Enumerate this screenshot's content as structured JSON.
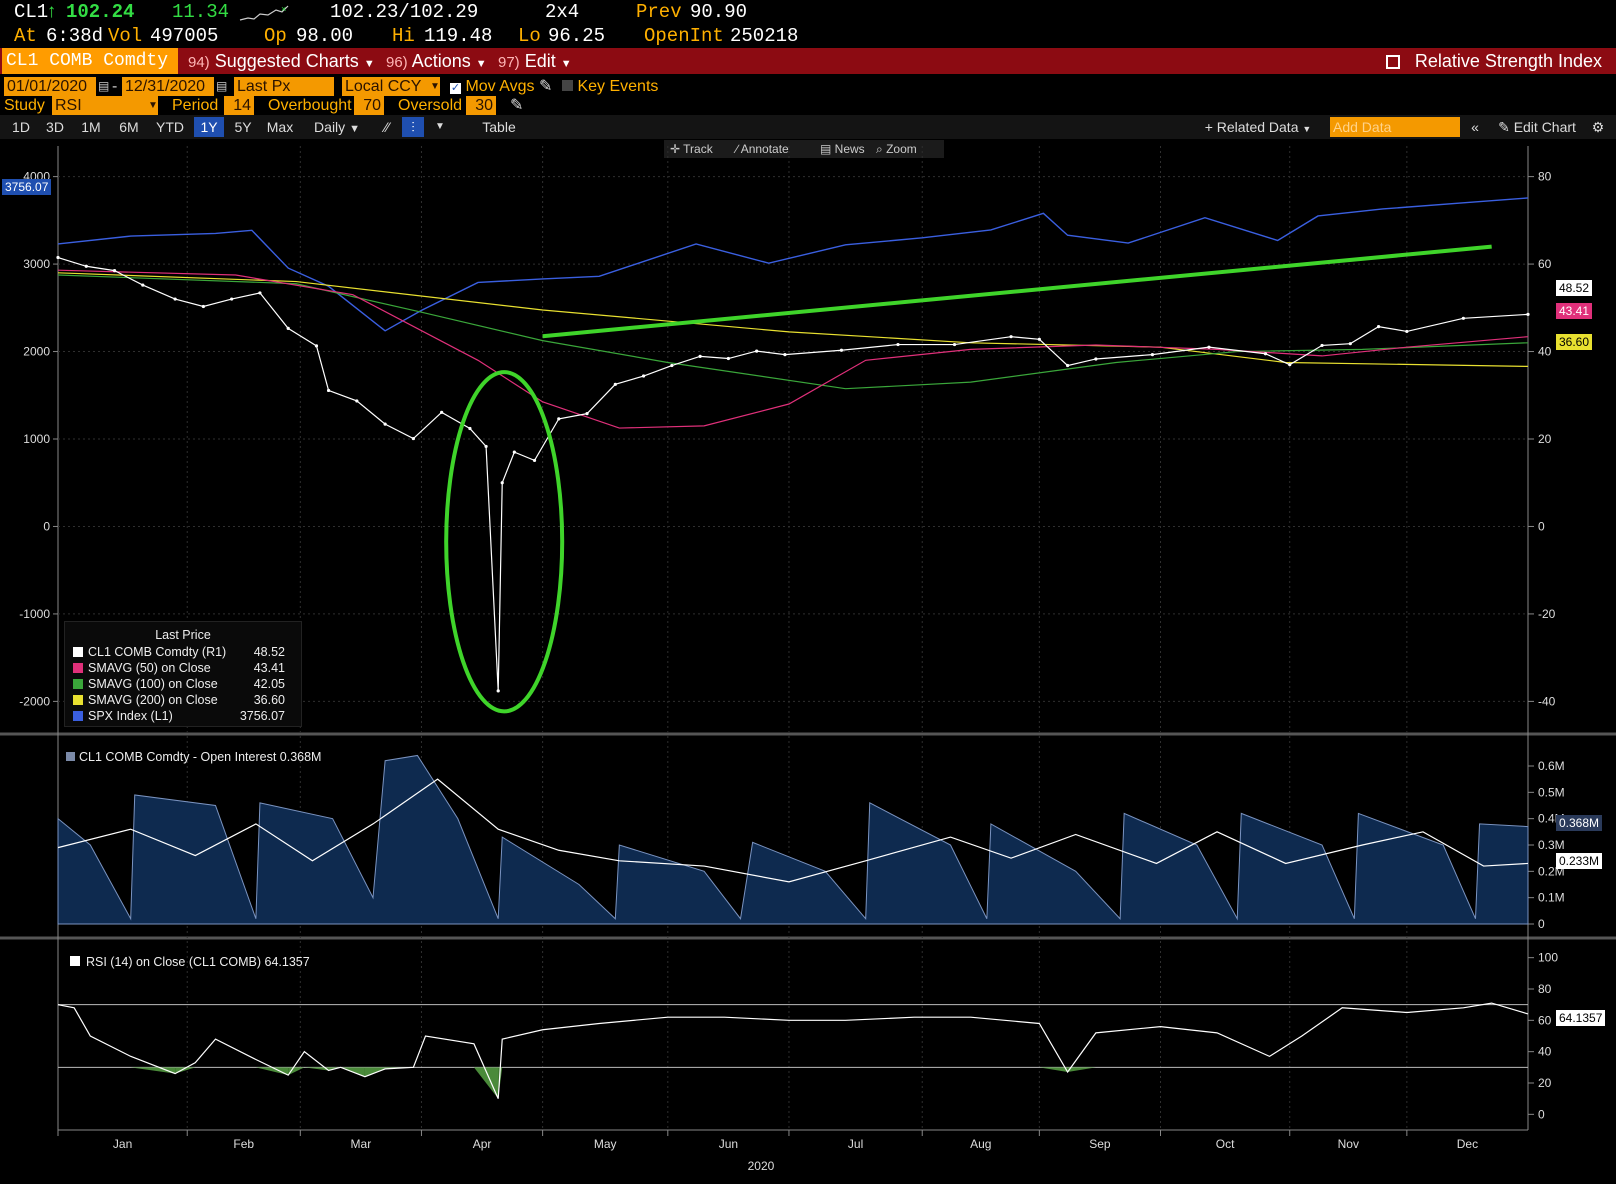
{
  "header": {
    "ticker": "CL1",
    "arrow": "↑",
    "last": "102.24",
    "change": "11.34",
    "row1_bid_ask": "102.23/102.29",
    "row1_size": "2x4",
    "prev_label": "Prev",
    "prev_value": "90.90",
    "at_label": "At",
    "at_value": "6:38d",
    "vol_label": "Vol",
    "vol_value": "497005",
    "op_label": "Op",
    "op_value": "98.00",
    "hi_label": "Hi",
    "hi_value": "119.48",
    "lo_label": "Lo",
    "lo_value": "96.25",
    "openint_label": "OpenInt",
    "openint_value": "250218"
  },
  "menubar": {
    "security": "CL1 COMB Comdty",
    "suggested_num": "94)",
    "suggested_label": "Suggested Charts",
    "actions_num": "96)",
    "actions_label": "Actions",
    "edit_num": "97)",
    "edit_label": "Edit",
    "title": "Relative Strength Index"
  },
  "settings": {
    "start_date": "01/01/2020",
    "end_date": "12/31/2020",
    "price_field": "Last Px",
    "currency": "Local CCY",
    "mov_avgs_label": "Mov Avgs",
    "key_events_label": "Key Events",
    "study_label": "Study",
    "study_value": "RSI",
    "period_label": "Period",
    "period_value": "14",
    "overbought_label": "Overbought",
    "overbought_value": "70",
    "oversold_label": "Oversold",
    "oversold_value": "30"
  },
  "toolbar": {
    "ranges": [
      "1D",
      "3D",
      "1M",
      "6M",
      "YTD",
      "1Y",
      "5Y",
      "Max"
    ],
    "active_range": "1Y",
    "frequency": "Daily",
    "table_label": "Table",
    "related_data": "Related Data",
    "add_data_placeholder": "Add Data",
    "edit_chart": "Edit Chart",
    "track": "Track",
    "annotate": "Annotate",
    "news": "News",
    "zoom": "Zoom"
  },
  "colors": {
    "price": "#ffffff",
    "smavg50": "#e0307a",
    "smavg100": "#3aa63a",
    "smavg200": "#e8e030",
    "spx": "#3a5fe0",
    "annotation": "#3fd42a",
    "open_interest_fill": "#0e2a4f",
    "rsi_oversold_fill": "#4a8a3a"
  },
  "chart_data": [
    {
      "type": "line",
      "panel": "price",
      "x_axis": {
        "labels": [
          "Jan",
          "Feb",
          "Mar",
          "Apr",
          "May",
          "Jun",
          "Jul",
          "Aug",
          "Sep",
          "Oct",
          "Nov",
          "Dec"
        ],
        "year_label": "2020"
      },
      "left_axis": {
        "ticks": [
          4000,
          3000,
          2000,
          1000,
          0,
          -1000,
          -2000
        ],
        "range": [
          -2350,
          4350
        ]
      },
      "right_axis": {
        "ticks": [
          80,
          60,
          40,
          20,
          0,
          -20,
          -40
        ],
        "range": [
          -47,
          87
        ]
      },
      "grid": true,
      "legend_title": "Last Price",
      "legend_position": "bottom-left",
      "series": [
        {
          "name": "CL1 COMB Comdty (R1)",
          "last": "48.52",
          "axis": "right",
          "x": [
            "2020-01-02",
            "2020-01-09",
            "2020-01-16",
            "2020-01-23",
            "2020-01-31",
            "2020-02-07",
            "2020-02-14",
            "2020-02-21",
            "2020-02-28",
            "2020-03-06",
            "2020-03-09",
            "2020-03-16",
            "2020-03-23",
            "2020-03-30",
            "2020-04-06",
            "2020-04-13",
            "2020-04-17",
            "2020-04-20",
            "2020-04-21",
            "2020-04-24",
            "2020-04-29",
            "2020-05-05",
            "2020-05-12",
            "2020-05-19",
            "2020-05-26",
            "2020-06-02",
            "2020-06-09",
            "2020-06-16",
            "2020-06-23",
            "2020-06-30",
            "2020-07-14",
            "2020-07-28",
            "2020-08-11",
            "2020-08-25",
            "2020-09-01",
            "2020-09-08",
            "2020-09-15",
            "2020-09-29",
            "2020-10-13",
            "2020-10-27",
            "2020-11-02",
            "2020-11-10",
            "2020-11-17",
            "2020-11-24",
            "2020-12-01",
            "2020-12-15",
            "2020-12-31"
          ],
          "values": [
            61.5,
            59.5,
            58.5,
            55.2,
            52.0,
            50.3,
            52.0,
            53.4,
            45.3,
            41.3,
            31.1,
            28.7,
            23.4,
            20.1,
            26.1,
            22.4,
            18.3,
            -37.6,
            10.0,
            17.0,
            15.1,
            24.6,
            25.8,
            32.5,
            34.4,
            36.8,
            38.9,
            38.4,
            40.1,
            39.3,
            40.3,
            41.6,
            41.6,
            43.4,
            42.8,
            36.8,
            38.3,
            39.3,
            41.0,
            39.5,
            37.0,
            41.4,
            41.8,
            45.7,
            44.6,
            47.6,
            48.5
          ]
        },
        {
          "name": "SMAVG (50) on Close",
          "last": "43.41",
          "axis": "right",
          "x": [
            "2020-01-02",
            "2020-02-15",
            "2020-03-15",
            "2020-04-15",
            "2020-05-01",
            "2020-05-20",
            "2020-06-10",
            "2020-07-01",
            "2020-07-20",
            "2020-08-15",
            "2020-09-15",
            "2020-10-15",
            "2020-11-10",
            "2020-12-01",
            "2020-12-31"
          ],
          "values": [
            58.6,
            57.5,
            53.0,
            38.0,
            28.5,
            22.5,
            23.0,
            28.0,
            38.0,
            40.5,
            41.5,
            40.5,
            39.0,
            41.0,
            43.4
          ]
        },
        {
          "name": "SMAVG (100) on Close",
          "last": "42.05",
          "axis": "right",
          "x": [
            "2020-01-02",
            "2020-03-01",
            "2020-04-01",
            "2020-05-01",
            "2020-06-01",
            "2020-07-15",
            "2020-08-15",
            "2020-09-20",
            "2020-10-20",
            "2020-11-20",
            "2020-12-31"
          ],
          "values": [
            57.5,
            55.5,
            49.0,
            42.5,
            37.5,
            31.5,
            33.0,
            37.5,
            40.0,
            40.5,
            42.0
          ]
        },
        {
          "name": "SMAVG (200) on Close",
          "last": "36.60",
          "axis": "right",
          "x": [
            "2020-01-02",
            "2020-03-01",
            "2020-05-01",
            "2020-07-01",
            "2020-08-15",
            "2020-10-01",
            "2020-11-01",
            "2020-12-31"
          ],
          "values": [
            58.0,
            56.0,
            49.5,
            44.5,
            42.0,
            41.0,
            37.5,
            36.6
          ]
        },
        {
          "name": "SPX Index (L1)",
          "last": "3756.07",
          "axis": "left",
          "x": [
            "2020-01-02",
            "2020-01-20",
            "2020-02-10",
            "2020-02-19",
            "2020-02-28",
            "2020-03-09",
            "2020-03-23",
            "2020-04-01",
            "2020-04-15",
            "2020-05-01",
            "2020-05-15",
            "2020-06-08",
            "2020-06-26",
            "2020-07-15",
            "2020-08-03",
            "2020-08-20",
            "2020-09-02",
            "2020-09-08",
            "2020-09-23",
            "2020-10-12",
            "2020-10-30",
            "2020-11-09",
            "2020-11-25",
            "2020-12-15",
            "2020-12-31"
          ],
          "values": [
            3230,
            3320,
            3350,
            3386,
            2954,
            2746,
            2237,
            2470,
            2790,
            2830,
            2860,
            3230,
            3010,
            3220,
            3300,
            3390,
            3580,
            3330,
            3240,
            3530,
            3270,
            3550,
            3630,
            3700,
            3756
          ]
        }
      ],
      "annotations": [
        {
          "shape": "ellipse",
          "around": "April 2020 negative price"
        },
        {
          "shape": "trendline",
          "from": "2020-05-01",
          "to": "2020-12-22"
        }
      ]
    },
    {
      "type": "area",
      "panel": "open_interest",
      "title": "CL1 COMB Comdty - Open Interest 0.368M",
      "y_ticks": [
        "0.6M",
        "0.5M",
        "0.4M",
        "0.3M",
        "0.2M",
        "0.1M",
        "0"
      ],
      "range": [
        0,
        0.6
      ],
      "tags": [
        "0.368M",
        "0.233M"
      ],
      "series": [
        {
          "name": "Open Interest",
          "last": "0.368M",
          "x": [
            "2020-01-02",
            "2020-01-10",
            "2020-01-20",
            "2020-01-21",
            "2020-02-10",
            "2020-02-20",
            "2020-02-21",
            "2020-03-10",
            "2020-03-20",
            "2020-03-23",
            "2020-03-31",
            "2020-04-10",
            "2020-04-20",
            "2020-04-21",
            "2020-05-10",
            "2020-05-19",
            "2020-05-20",
            "2020-06-10",
            "2020-06-19",
            "2020-06-22",
            "2020-07-10",
            "2020-07-20",
            "2020-07-21",
            "2020-08-10",
            "2020-08-19",
            "2020-08-20",
            "2020-09-10",
            "2020-09-21",
            "2020-09-22",
            "2020-10-10",
            "2020-10-20",
            "2020-10-21",
            "2020-11-10",
            "2020-11-18",
            "2020-11-19",
            "2020-12-10",
            "2020-12-18",
            "2020-12-19",
            "2020-12-31"
          ],
          "values": [
            0.4,
            0.3,
            0.02,
            0.49,
            0.45,
            0.02,
            0.46,
            0.4,
            0.1,
            0.62,
            0.64,
            0.4,
            0.02,
            0.33,
            0.15,
            0.02,
            0.3,
            0.2,
            0.02,
            0.31,
            0.2,
            0.02,
            0.46,
            0.3,
            0.02,
            0.38,
            0.2,
            0.02,
            0.42,
            0.3,
            0.02,
            0.42,
            0.3,
            0.02,
            0.42,
            0.3,
            0.02,
            0.38,
            0.37
          ]
        },
        {
          "name": "Open Interest average",
          "last": "0.233M",
          "x": [
            "2020-01-02",
            "2020-01-20",
            "2020-02-05",
            "2020-02-20",
            "2020-03-05",
            "2020-03-20",
            "2020-04-05",
            "2020-04-20",
            "2020-05-05",
            "2020-05-20",
            "2020-06-10",
            "2020-07-01",
            "2020-07-20",
            "2020-08-10",
            "2020-08-25",
            "2020-09-10",
            "2020-09-30",
            "2020-10-15",
            "2020-11-01",
            "2020-11-20",
            "2020-12-05",
            "2020-12-20",
            "2020-12-31"
          ],
          "values": [
            0.29,
            0.36,
            0.26,
            0.38,
            0.24,
            0.38,
            0.55,
            0.36,
            0.28,
            0.24,
            0.22,
            0.16,
            0.24,
            0.33,
            0.25,
            0.34,
            0.23,
            0.35,
            0.23,
            0.3,
            0.35,
            0.22,
            0.23
          ]
        }
      ]
    },
    {
      "type": "line",
      "panel": "rsi",
      "title": "RSI (14) on Close (CL1 COMB) 64.1357",
      "y_ticks": [
        100,
        80,
        60,
        40,
        20,
        0
      ],
      "range": [
        -10,
        110
      ],
      "overbought": 70,
      "oversold": 30,
      "last": "64.1357",
      "series": [
        {
          "name": "RSI (14) on Close (CL1 COMB)",
          "x": [
            "2020-01-02",
            "2020-01-06",
            "2020-01-10",
            "2020-01-20",
            "2020-01-31",
            "2020-02-05",
            "2020-02-10",
            "2020-02-20",
            "2020-02-28",
            "2020-03-03",
            "2020-03-09",
            "2020-03-12",
            "2020-03-18",
            "2020-03-23",
            "2020-03-30",
            "2020-04-02",
            "2020-04-14",
            "2020-04-20",
            "2020-04-21",
            "2020-05-01",
            "2020-05-15",
            "2020-06-01",
            "2020-06-15",
            "2020-07-01",
            "2020-07-15",
            "2020-08-01",
            "2020-08-15",
            "2020-09-01",
            "2020-09-08",
            "2020-09-15",
            "2020-10-01",
            "2020-10-15",
            "2020-10-28",
            "2020-11-05",
            "2020-11-15",
            "2020-12-01",
            "2020-12-15",
            "2020-12-22",
            "2020-12-31"
          ],
          "values": [
            70,
            68,
            50,
            37,
            26,
            33,
            48,
            35,
            25,
            40,
            28,
            30,
            24,
            29,
            30,
            50,
            45,
            10,
            48,
            54,
            58,
            62,
            62,
            60,
            60,
            62,
            62,
            58,
            27,
            52,
            56,
            52,
            37,
            50,
            68,
            65,
            68,
            71,
            64.1
          ]
        }
      ]
    }
  ],
  "legend": {
    "title": "Last Price",
    "rows": [
      {
        "name": "CL1 COMB Comdty (R1)",
        "value": "48.52",
        "color": "#ffffff"
      },
      {
        "name": "SMAVG (50) on Close",
        "value": "43.41",
        "color": "#e0307a"
      },
      {
        "name": "SMAVG (100) on Close",
        "value": "42.05",
        "color": "#3aa63a"
      },
      {
        "name": "SMAVG (200) on Close",
        "value": "36.60",
        "color": "#e8e030"
      },
      {
        "name": "SPX Index (L1)",
        "value": "3756.07",
        "color": "#3a5fe0"
      }
    ]
  },
  "tags": {
    "spx": "3756.07",
    "cl1": "48.52",
    "sma50": "43.41",
    "sma200": "36.60",
    "oi_last": "0.368M",
    "oi_avg": "0.233M",
    "rsi_last": "64.1357"
  },
  "panels": {
    "oi_title": "CL1 COMB Comdty - Open Interest 0.368M",
    "rsi_title": "RSI (14) on Close (CL1 COMB) 64.1357"
  }
}
